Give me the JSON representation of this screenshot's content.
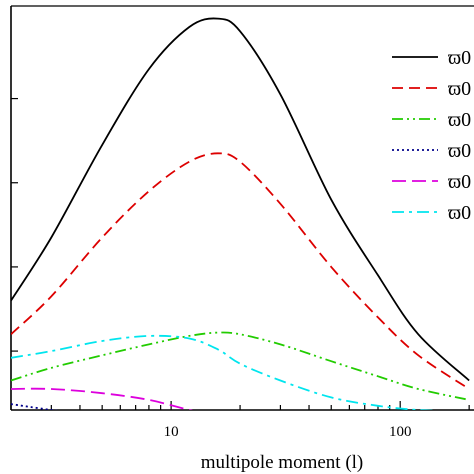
{
  "chart_data": {
    "type": "line",
    "xlabel": "multipole moment (l)",
    "ylabel": "",
    "xscale": "log",
    "xlim": [
      2,
      210
    ],
    "ylim": [
      0,
      4.8
    ],
    "x_ticks": [
      {
        "value": 10,
        "label": "10"
      },
      {
        "value": 100,
        "label": "100"
      }
    ],
    "y_ticks": [
      0.7,
      1.7,
      2.7,
      3.7
    ],
    "grid": false,
    "legend": "top-right",
    "series": [
      {
        "name": "ϖ0",
        "color": "#000000",
        "dash": "solid",
        "x": [
          2,
          3,
          5,
          8,
          12,
          16,
          20,
          30,
          50,
          80,
          120,
          200
        ],
        "y": [
          1.3,
          2.05,
          3.15,
          4.05,
          4.55,
          4.65,
          4.5,
          3.75,
          2.5,
          1.6,
          0.9,
          0.35
        ]
      },
      {
        "name": "ϖ0",
        "color": "#dd0000",
        "dash": "dashed",
        "x": [
          2,
          3,
          5,
          8,
          12,
          16,
          20,
          30,
          50,
          80,
          120,
          200
        ],
        "y": [
          0.9,
          1.35,
          2.05,
          2.6,
          2.95,
          3.05,
          2.95,
          2.45,
          1.7,
          1.1,
          0.65,
          0.25
        ]
      },
      {
        "name": "ϖ0",
        "color": "#22cc00",
        "dash": "dashdotdot",
        "x": [
          2,
          3,
          5,
          8,
          12,
          16,
          20,
          30,
          50,
          80,
          120,
          200
        ],
        "y": [
          0.35,
          0.5,
          0.65,
          0.78,
          0.88,
          0.92,
          0.9,
          0.78,
          0.58,
          0.4,
          0.25,
          0.12
        ]
      },
      {
        "name": "ϖ0",
        "color": "#00008b",
        "dash": "dotted",
        "x": [
          2,
          3,
          5,
          8,
          12,
          16,
          20,
          30,
          40,
          50,
          80,
          120,
          200
        ],
        "y": [
          0.07,
          0.0,
          -0.08,
          -0.15,
          -0.22,
          -0.28,
          -0.32,
          -0.35,
          -0.34,
          -0.3,
          -0.2,
          -0.15,
          -0.05
        ]
      },
      {
        "name": "ϖ0",
        "color": "#dd00dd",
        "dash": "longdash",
        "x": [
          2,
          3,
          5,
          8,
          12,
          16,
          20,
          30,
          40,
          50,
          80,
          120,
          200
        ],
        "y": [
          0.25,
          0.25,
          0.2,
          0.12,
          0.0,
          -0.08,
          -0.12,
          -0.3,
          -0.42,
          -0.4,
          -0.32,
          -0.2,
          -0.07
        ]
      },
      {
        "name": "ϖ0",
        "color": "#00e5ee",
        "dash": "dashdot",
        "x": [
          2,
          3,
          5,
          8,
          12,
          16,
          20,
          30,
          50,
          80,
          120,
          200
        ],
        "y": [
          0.62,
          0.7,
          0.82,
          0.88,
          0.85,
          0.72,
          0.55,
          0.35,
          0.15,
          0.05,
          0.0,
          -0.02
        ]
      }
    ]
  }
}
